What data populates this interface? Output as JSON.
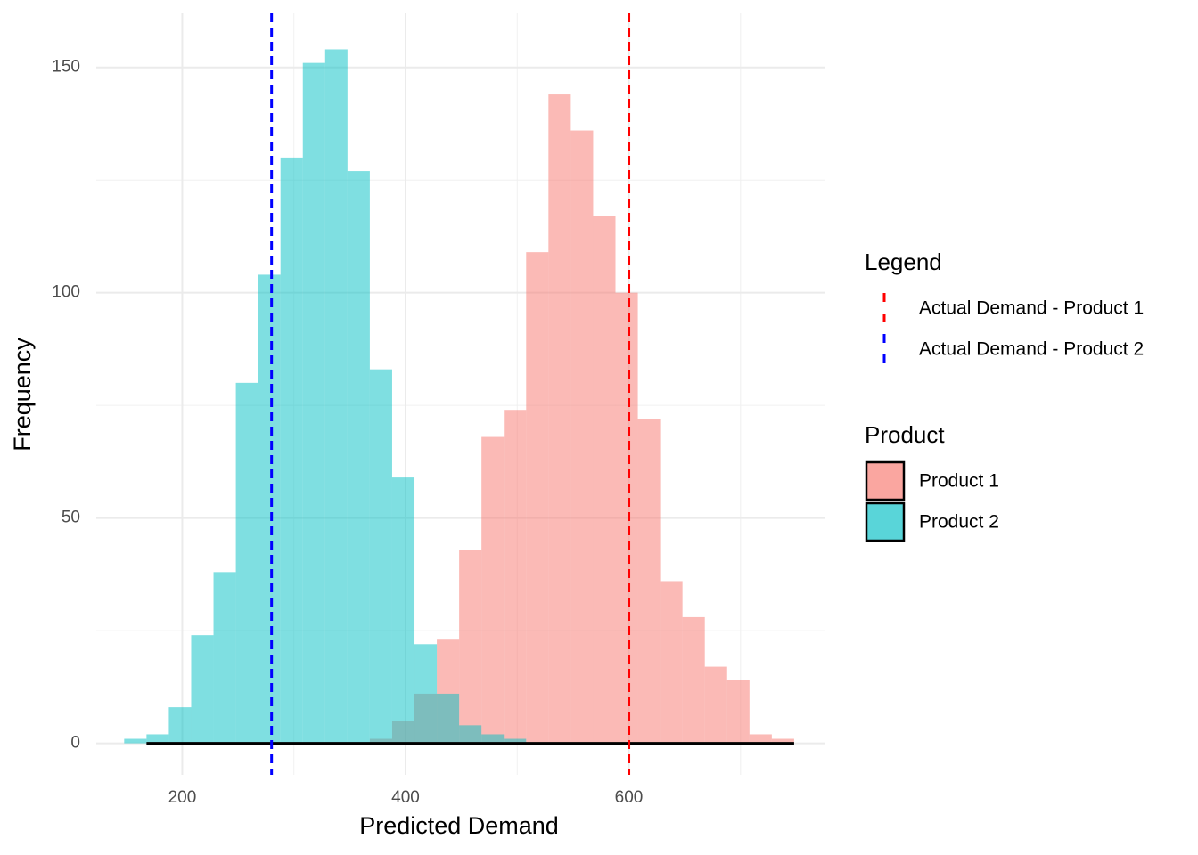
{
  "chart_data": {
    "type": "histogram",
    "x_label": "Predicted Demand",
    "y_label": "Frequency",
    "bins": [
      148,
      168,
      188,
      208,
      228,
      248,
      268,
      288,
      308,
      328,
      348,
      368,
      388,
      408,
      428,
      448,
      468,
      488,
      508,
      528,
      548,
      568,
      588,
      608,
      628,
      648,
      668,
      688,
      708,
      728,
      748
    ],
    "series": [
      {
        "name": "Product 1",
        "color": "#F8766D",
        "values": [
          0,
          0,
          0,
          0,
          0,
          0,
          0,
          0,
          0,
          0,
          0,
          1,
          5,
          11,
          23,
          43,
          68,
          74,
          109,
          144,
          136,
          117,
          100,
          72,
          36,
          28,
          17,
          14,
          2,
          1
        ]
      },
      {
        "name": "Product 2",
        "color": "#00BFC4",
        "values": [
          1,
          2,
          8,
          24,
          38,
          80,
          104,
          130,
          151,
          154,
          127,
          83,
          59,
          22,
          11,
          4,
          2,
          1,
          0,
          0,
          0,
          0,
          0,
          0,
          0,
          0,
          0,
          0,
          0,
          0
        ]
      }
    ],
    "fill_legend_title": "Product",
    "line_legend_title": "Legend",
    "reference_lines": [
      {
        "name": "Actual Demand - Product 1",
        "value": 600,
        "color": "#FF0000"
      },
      {
        "name": "Actual Demand - Product 2",
        "value": 280,
        "color": "#0000FF"
      }
    ],
    "opacity": 0.5,
    "xlim": [
      123,
      776
    ],
    "ylim": [
      -7,
      162
    ],
    "xticks": [
      200,
      400,
      600
    ],
    "yticks": [
      0,
      50,
      100,
      150
    ],
    "grid": true
  }
}
